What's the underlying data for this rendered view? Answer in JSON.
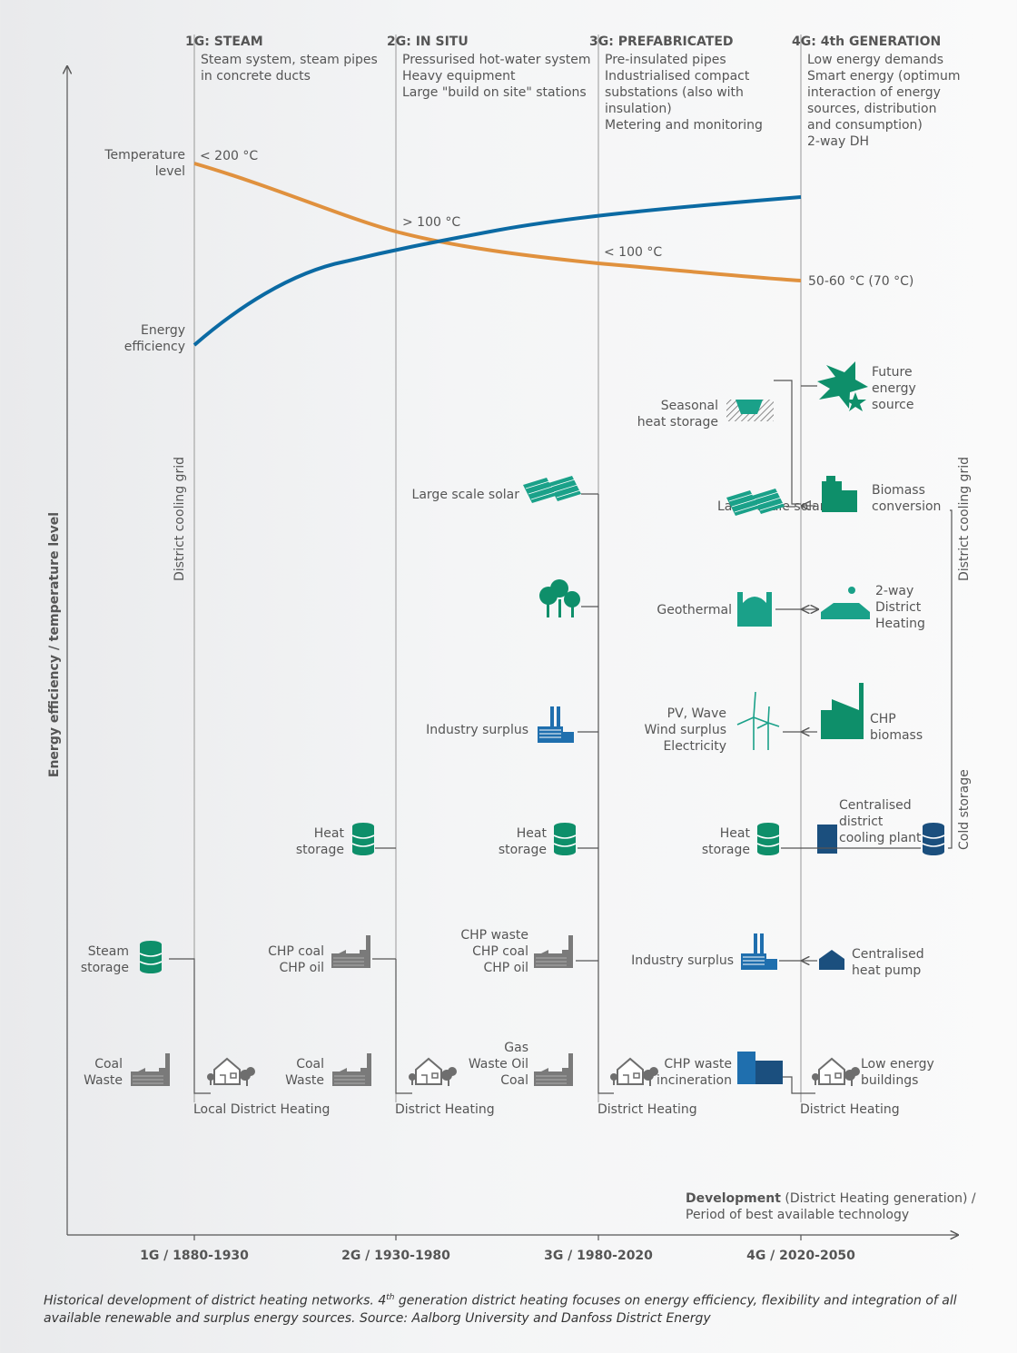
{
  "y_axis_label": "Energy efficiency / temperature level",
  "x_axis_label_bold": "Development",
  "x_axis_label_rest": " (District Heating generation) /",
  "x_axis_label_line2": "Period of best available technology",
  "generations": [
    {
      "heading": "1G: STEAM",
      "desc": [
        "Steam system, steam pipes",
        "in concrete ducts"
      ],
      "tick": "1G / 1880-1930",
      "network": "Local District Heating"
    },
    {
      "heading": "2G: IN SITU",
      "desc": [
        "Pressurised hot-water system",
        "Heavy equipment",
        "Large \"build on site\" stations"
      ],
      "tick": "2G / 1930-1980",
      "network": "District Heating"
    },
    {
      "heading": "3G: PREFABRICATED",
      "desc": [
        "Pre-insulated pipes",
        "Industrialised compact",
        "substations (also with",
        "insulation)",
        "Metering and monitoring"
      ],
      "tick": "3G / 1980-2020",
      "network": "District Heating"
    },
    {
      "heading": "4G: 4th GENERATION",
      "desc": [
        "Low energy demands",
        "Smart energy (optimum",
        "interaction of energy",
        "sources, distribution",
        "and consumption)",
        "2-way DH"
      ],
      "tick": "4G / 2020-2050",
      "network": "District Heating"
    }
  ],
  "curve_labels": {
    "temperature": [
      "Temperature",
      "level"
    ],
    "efficiency": [
      "Energy",
      "efficiency"
    ],
    "t1": "< 200 °C",
    "t2": "> 100 °C",
    "t3": "< 100 °C",
    "t4": "50-60 °C (70 °C)"
  },
  "grid_labels": {
    "cooling_left": "District cooling grid",
    "cooling_right": "District cooling grid",
    "cold_storage": "Cold storage"
  },
  "labels_1g": {
    "steam_storage": [
      "Steam",
      "storage"
    ],
    "coal_waste": [
      "Coal",
      "Waste"
    ]
  },
  "labels_2g": {
    "heat_storage": [
      "Heat",
      "storage"
    ],
    "chp": [
      "CHP coal",
      "CHP oil"
    ],
    "coal_waste": [
      "Coal",
      "Waste"
    ]
  },
  "labels_3g": {
    "solar": "Large scale solar",
    "industry": "Industry surplus",
    "heat_storage": [
      "Heat",
      "storage"
    ],
    "chp": [
      "CHP waste",
      "CHP coal",
      "CHP oil"
    ],
    "fuel": [
      "Gas",
      "Waste Oil",
      "Coal"
    ]
  },
  "labels_4g": {
    "seasonal": [
      "Seasonal",
      "heat storage"
    ],
    "future": [
      "Future",
      "energy",
      "source"
    ],
    "solar": "Large scale solar",
    "biomass_conv": [
      "Biomass",
      "conversion"
    ],
    "geothermal": "Geothermal",
    "two_way": [
      "2-way",
      "District",
      "Heating"
    ],
    "pv": [
      "PV, Wave",
      "Wind surplus",
      "Electricity"
    ],
    "chp_bio": [
      "CHP",
      "biomass"
    ],
    "heat_storage": [
      "Heat",
      "storage"
    ],
    "central_cooling": [
      "Centralised",
      "district",
      "cooling plant"
    ],
    "industry": "Industry surplus",
    "heat_pump": [
      "Centralised",
      "heat pump"
    ],
    "chp_waste": [
      "CHP waste",
      "incineration"
    ],
    "low_energy": [
      "Low energy",
      "buildings"
    ]
  },
  "caption_a": "Historical development of district heating networks. 4",
  "caption_sup": "th",
  "caption_b": " generation district heating focuses on energy efficiency, flexibility and integration of all available renewable and surplus energy sources. Source: Aalborg University and Danfoss District Energy",
  "colors": {
    "temperature": "#e0913e",
    "efficiency": "#0b6aa3",
    "green": "#0e8f6a",
    "teal": "#1aa189",
    "blue": "#1f6fae",
    "navy": "#1b4f7e",
    "grey": "#7a7a7a"
  }
}
